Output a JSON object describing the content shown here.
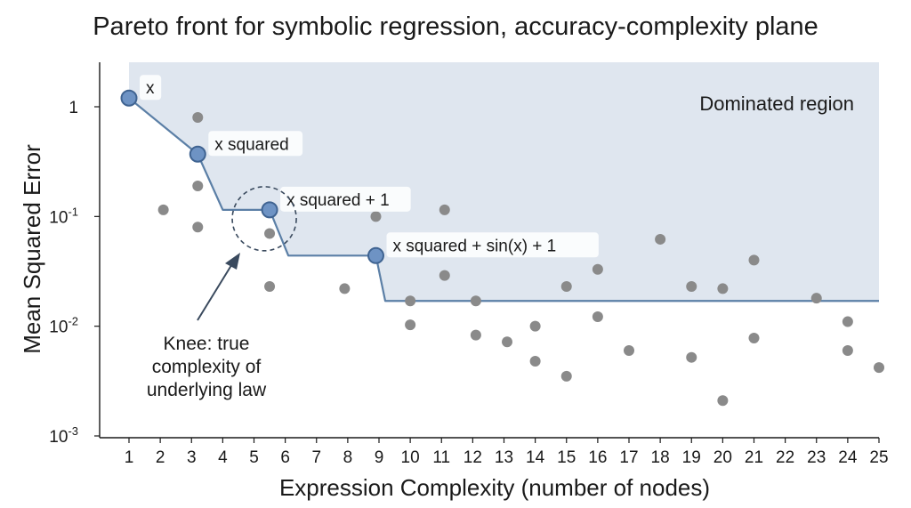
{
  "chart_data": {
    "type": "scatter",
    "title": "Pareto front for symbolic regression, accuracy-complexity plane",
    "xlabel": "Expression Complexity (number of nodes)",
    "ylabel": "Mean Squared Error",
    "x_ticks": [
      1,
      2,
      3,
      4,
      5,
      6,
      7,
      8,
      9,
      10,
      11,
      12,
      13,
      14,
      15,
      16,
      17,
      18,
      19,
      20,
      21,
      22,
      23,
      24,
      25
    ],
    "xlim": [
      1,
      25
    ],
    "y_scale": "log",
    "ylim": [
      0.001,
      2
    ],
    "y_ticks": [
      {
        "value": 1,
        "label": "1",
        "base": "1",
        "exp": ""
      },
      {
        "value": 0.1,
        "label": "10^-1",
        "base": "10",
        "exp": "-1"
      },
      {
        "value": 0.01,
        "label": "10^-2",
        "base": "10",
        "exp": "-2"
      },
      {
        "value": 0.001,
        "label": "10^-3",
        "base": "10",
        "exp": "-3"
      }
    ],
    "grid": false,
    "dominated_region_label": "Dominated region",
    "pareto_points": [
      {
        "x": 1.0,
        "y": 1.2,
        "label": "x"
      },
      {
        "x": 3.2,
        "y": 0.37,
        "label": "x squared"
      },
      {
        "x": 5.5,
        "y": 0.115,
        "label": "x squared + 1"
      },
      {
        "x": 8.9,
        "y": 0.044,
        "label": "x squared + sin(x) + 1"
      }
    ],
    "pareto_front": [
      [
        1.0,
        1.2
      ],
      [
        3.2,
        0.37
      ],
      [
        4.0,
        0.115
      ],
      [
        5.5,
        0.115
      ],
      [
        6.1,
        0.044
      ],
      [
        8.9,
        0.044
      ],
      [
        9.2,
        0.017
      ],
      [
        25,
        0.017
      ]
    ],
    "candidates": [
      [
        3.2,
        0.8
      ],
      [
        3.2,
        0.19
      ],
      [
        3.2,
        0.08
      ],
      [
        2.1,
        0.115
      ],
      [
        5.5,
        0.07
      ],
      [
        5.5,
        0.023
      ],
      [
        7.9,
        0.022
      ],
      [
        8.9,
        0.1
      ],
      [
        10.0,
        0.017
      ],
      [
        10.0,
        0.0103
      ],
      [
        11.1,
        0.115
      ],
      [
        11.1,
        0.029
      ],
      [
        12.1,
        0.017
      ],
      [
        12.1,
        0.0083
      ],
      [
        13.1,
        0.0072
      ],
      [
        14.0,
        0.01
      ],
      [
        14.0,
        0.0048
      ],
      [
        15.0,
        0.023
      ],
      [
        15.0,
        0.0035
      ],
      [
        16.0,
        0.033
      ],
      [
        16.0,
        0.0122
      ],
      [
        17.0,
        0.006
      ],
      [
        18.0,
        0.062
      ],
      [
        19.0,
        0.023
      ],
      [
        19.0,
        0.0052
      ],
      [
        20.0,
        0.022
      ],
      [
        20.0,
        0.0021
      ],
      [
        21.0,
        0.04
      ],
      [
        21.0,
        0.0078
      ],
      [
        23.0,
        0.018
      ],
      [
        24.0,
        0.011
      ],
      [
        24.0,
        0.006
      ],
      [
        25.0,
        0.0042
      ]
    ],
    "annotation": {
      "lines": [
        "Knee: true",
        "complexity of",
        "underlying law"
      ],
      "target_point": 2
    },
    "colors": {
      "region_fill": "#dfe6ef",
      "front_line": "#5b7fa6",
      "pareto_fill": "#6e93c4",
      "pareto_stroke": "#3f6391",
      "candidate": "#8a8a8a",
      "annotation": "#3a4a5e"
    }
  }
}
